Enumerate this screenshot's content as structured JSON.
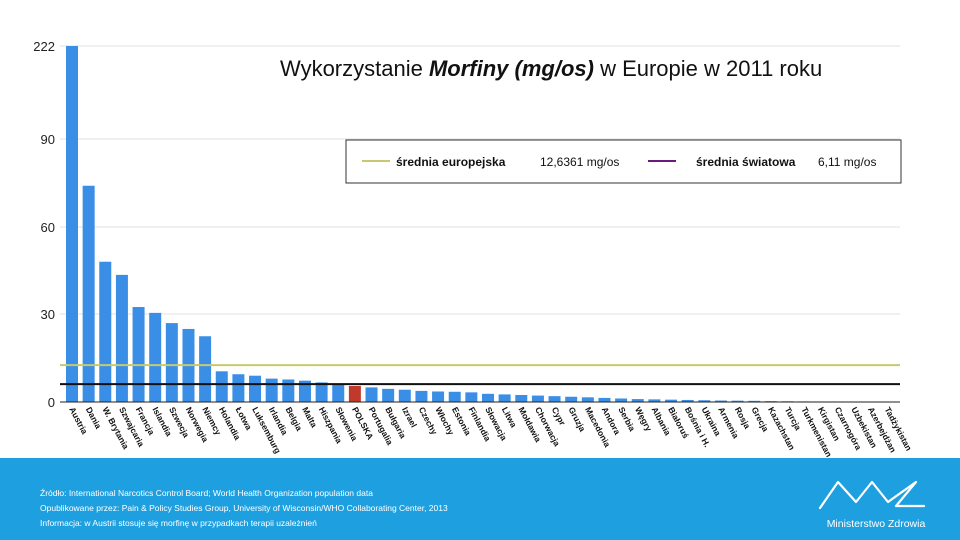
{
  "chart_data": {
    "type": "bar",
    "title_parts": [
      "Wykorzystanie ",
      "Morfiny (mg/os)",
      " w Europie w 2011 roku"
    ],
    "yticks": [
      "0",
      "30",
      "60",
      "90",
      "222"
    ],
    "categories": [
      "Austria",
      "Dania",
      "W. Brytania",
      "Szwajcaria",
      "Francja",
      "Islandia",
      "Szwecja",
      "Norwegia",
      "Niemcy",
      "Holandia",
      "Łotwa",
      "Luksemburg",
      "Irlandia",
      "Belgia",
      "Malta",
      "Hiszpania",
      "Słowenia",
      "POLSKA",
      "Portugalia",
      "Bułgaria",
      "Izrael",
      "Czechy",
      "Włochy",
      "Estonia",
      "Finlandia",
      "Słowacja",
      "Litwa",
      "Mołdawia",
      "Chorwacja",
      "Cypr",
      "Gruzja",
      "Macedonia",
      "Andora",
      "Serbia",
      "Węgry",
      "Albania",
      "Białoruś",
      "Bośnia i H.",
      "Ukraina",
      "Armenia",
      "Rosja",
      "Grecja",
      "Kazachstan",
      "Turcja",
      "Turkmenistan",
      "Kirgistan",
      "Czarnogóra",
      "Uzbekistan",
      "Azerbejdżan",
      "Tadżykistan"
    ],
    "values": [
      222,
      74,
      48,
      43.5,
      32.5,
      30.5,
      27,
      25,
      22.5,
      10.5,
      9.5,
      9,
      8,
      7.7,
      7.3,
      6.7,
      6.2,
      5.5,
      5,
      4.5,
      4.2,
      3.8,
      3.6,
      3.5,
      3.3,
      2.8,
      2.6,
      2.4,
      2.2,
      2,
      1.8,
      1.6,
      1.4,
      1.2,
      1,
      0.9,
      0.8,
      0.7,
      0.6,
      0.5,
      0.45,
      0.4,
      0.3,
      0.25,
      0.2,
      0.15,
      0.1,
      0.08,
      0.05,
      0.03
    ],
    "highlight": "POLSKA",
    "colors": {
      "bar": "#3a8ee6",
      "highlight": "#c0392b",
      "eu_line": "#c8c870",
      "world_line": "#6a1a7a"
    },
    "legend": {
      "eu_label": "średnia europejska",
      "eu_value": "12,6361 mg/os",
      "world_label": "średnia światowa",
      "world_value": "6,11 mg/os"
    },
    "reference_lines": {
      "eu": 12.6361,
      "world": 6.11
    }
  },
  "footer": {
    "source": "Źródło:  International Narcotics Control Board; World Health Organization population data",
    "published": "Opublikowane przez:  Pain & Policy Studies Group, University of Wisconsin/WHO Collaborating Center, 2013",
    "info": "Informacja: w Austrii stosuje się morfinę w przypadkach terapii uzależnień",
    "brand": "Ministerstwo Zdrowia"
  }
}
